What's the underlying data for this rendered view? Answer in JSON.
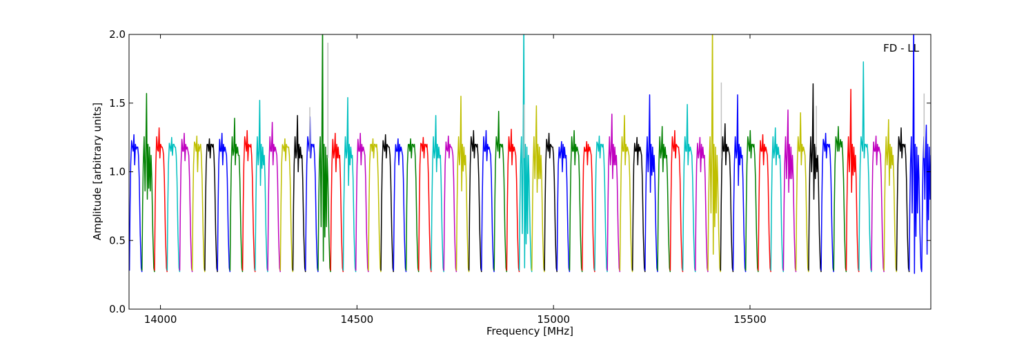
{
  "chart_data": {
    "type": "line",
    "annotation": "FD - LL",
    "xlabel": "Frequency [MHz]",
    "ylabel": "Amplitude [arbitrary units]",
    "xlim": [
      13920,
      15960
    ],
    "ylim": [
      0.0,
      2.0
    ],
    "x_ticks": [
      14000,
      14500,
      15000,
      15500
    ],
    "x_tick_labels": [
      "14000",
      "14500",
      "15000",
      "15500"
    ],
    "y_ticks": [
      0.0,
      0.5,
      1.0,
      1.5,
      2.0
    ],
    "y_tick_labels": [
      "0.0",
      "0.5",
      "1.0",
      "1.5",
      "2.0"
    ],
    "grid": false,
    "legend": "none",
    "color_cycle": [
      "#0000ff",
      "#008000",
      "#ff0000",
      "#00bfbf",
      "#bf00bf",
      "#bfbf00",
      "#000000"
    ],
    "spike_color": "#c0c0c0",
    "channel_width_mhz": 32,
    "channels": [
      {
        "start": 13921,
        "color": "#0000ff",
        "peak": 1.27,
        "dips": [
          1.05,
          1.18
        ]
      },
      {
        "start": 13953,
        "color": "#008000",
        "peak": 1.57,
        "dips": [
          0.8,
          0.86
        ]
      },
      {
        "start": 13985,
        "color": "#ff0000",
        "peak": 1.32,
        "dips": [
          1.1,
          1.16
        ]
      },
      {
        "start": 14017,
        "color": "#00bfbf",
        "peak": 1.25,
        "dips": [
          1.12,
          1.18
        ]
      },
      {
        "start": 14049,
        "color": "#bf00bf",
        "peak": 1.28,
        "dips": [
          1.08,
          1.15
        ]
      },
      {
        "start": 14081,
        "color": "#bfbf00",
        "peak": 1.26,
        "dips": [
          1.0,
          1.2
        ]
      },
      {
        "start": 14113,
        "color": "#000000",
        "peak": 1.24,
        "dips": [
          1.1,
          1.2
        ]
      },
      {
        "start": 14145,
        "color": "#0000ff",
        "peak": 1.28,
        "dips": [
          1.05,
          1.15
        ]
      },
      {
        "start": 14177,
        "color": "#008000",
        "peak": 1.39,
        "dips": [
          1.05,
          1.12
        ]
      },
      {
        "start": 14209,
        "color": "#ff0000",
        "peak": 1.3,
        "dips": [
          1.08,
          1.2
        ]
      },
      {
        "start": 14241,
        "color": "#00bfbf",
        "peak": 1.52,
        "dips": [
          0.9,
          1.05
        ]
      },
      {
        "start": 14273,
        "color": "#bf00bf",
        "peak": 1.36,
        "dips": [
          1.05,
          1.15
        ]
      },
      {
        "start": 14305,
        "color": "#bfbf00",
        "peak": 1.24,
        "dips": [
          1.08,
          1.18
        ]
      },
      {
        "start": 14337,
        "color": "#000000",
        "peak": 1.41,
        "dips": [
          1.0,
          1.1
        ]
      },
      {
        "start": 14369,
        "color": "#0000ff",
        "peak": 1.4,
        "dips": [
          1.1,
          1.2
        ]
      },
      {
        "start": 14401,
        "color": "#008000",
        "peak": 2.1,
        "dips": [
          0.35,
          0.6
        ]
      },
      {
        "start": 14433,
        "color": "#ff0000",
        "peak": 1.28,
        "dips": [
          1.0,
          1.1
        ]
      },
      {
        "start": 14465,
        "color": "#00bfbf",
        "peak": 1.54,
        "dips": [
          0.9,
          1.1
        ]
      },
      {
        "start": 14497,
        "color": "#bf00bf",
        "peak": 1.28,
        "dips": [
          1.05,
          1.15
        ]
      },
      {
        "start": 14529,
        "color": "#bfbf00",
        "peak": 1.24,
        "dips": [
          1.1,
          1.2
        ]
      },
      {
        "start": 14561,
        "color": "#000000",
        "peak": 1.27,
        "dips": [
          1.1,
          1.18
        ]
      },
      {
        "start": 14593,
        "color": "#0000ff",
        "peak": 1.24,
        "dips": [
          1.05,
          1.15
        ]
      },
      {
        "start": 14625,
        "color": "#008000",
        "peak": 1.24,
        "dips": [
          1.1,
          1.2
        ]
      },
      {
        "start": 14657,
        "color": "#ff0000",
        "peak": 1.25,
        "dips": [
          1.1,
          1.2
        ]
      },
      {
        "start": 14689,
        "color": "#00bfbf",
        "peak": 1.41,
        "dips": [
          1.0,
          1.1
        ]
      },
      {
        "start": 14721,
        "color": "#bf00bf",
        "peak": 1.26,
        "dips": [
          1.1,
          1.16
        ]
      },
      {
        "start": 14753,
        "color": "#bfbf00",
        "peak": 1.55,
        "dips": [
          0.86,
          1.05
        ]
      },
      {
        "start": 14785,
        "color": "#000000",
        "peak": 1.3,
        "dips": [
          1.1,
          1.2
        ]
      },
      {
        "start": 14817,
        "color": "#0000ff",
        "peak": 1.3,
        "dips": [
          1.08,
          1.15
        ]
      },
      {
        "start": 14849,
        "color": "#008000",
        "peak": 1.44,
        "dips": [
          1.1,
          1.2
        ]
      },
      {
        "start": 14881,
        "color": "#ff0000",
        "peak": 1.31,
        "dips": [
          1.05,
          1.15
        ]
      },
      {
        "start": 14913,
        "color": "#00bfbf",
        "peak": 2.1,
        "dips": [
          0.3,
          0.55
        ]
      },
      {
        "start": 14945,
        "color": "#bfbf00",
        "peak": 1.48,
        "dips": [
          0.85,
          0.95
        ]
      },
      {
        "start": 14977,
        "color": "#000000",
        "peak": 1.28,
        "dips": [
          1.1,
          1.18
        ]
      },
      {
        "start": 15009,
        "color": "#0000ff",
        "peak": 1.22,
        "dips": [
          1.0,
          1.1
        ]
      },
      {
        "start": 15041,
        "color": "#008000",
        "peak": 1.3,
        "dips": [
          1.05,
          1.15
        ]
      },
      {
        "start": 15073,
        "color": "#ff0000",
        "peak": 1.22,
        "dips": [
          1.05,
          1.15
        ]
      },
      {
        "start": 15105,
        "color": "#00bfbf",
        "peak": 1.26,
        "dips": [
          1.1,
          1.2
        ]
      },
      {
        "start": 15137,
        "color": "#bf00bf",
        "peak": 1.42,
        "dips": [
          0.95,
          1.05
        ]
      },
      {
        "start": 15169,
        "color": "#bfbf00",
        "peak": 1.41,
        "dips": [
          1.05,
          1.15
        ]
      },
      {
        "start": 15201,
        "color": "#000000",
        "peak": 1.25,
        "dips": [
          1.05,
          1.15
        ]
      },
      {
        "start": 15233,
        "color": "#0000ff",
        "peak": 1.56,
        "dips": [
          0.85,
          1.0
        ]
      },
      {
        "start": 15265,
        "color": "#008000",
        "peak": 1.33,
        "dips": [
          1.0,
          1.1
        ]
      },
      {
        "start": 15297,
        "color": "#ff0000",
        "peak": 1.3,
        "dips": [
          1.1,
          1.18
        ]
      },
      {
        "start": 15329,
        "color": "#00bfbf",
        "peak": 1.49,
        "dips": [
          1.05,
          1.15
        ]
      },
      {
        "start": 15361,
        "color": "#bf00bf",
        "peak": 1.25,
        "dips": [
          1.0,
          1.1
        ]
      },
      {
        "start": 15393,
        "color": "#bfbf00",
        "peak": 2.1,
        "dips": [
          0.4,
          0.7
        ]
      },
      {
        "start": 15425,
        "color": "#000000",
        "peak": 1.35,
        "dips": [
          1.05,
          1.15
        ]
      },
      {
        "start": 15457,
        "color": "#0000ff",
        "peak": 1.56,
        "dips": [
          0.9,
          1.1
        ]
      },
      {
        "start": 15489,
        "color": "#008000",
        "peak": 1.3,
        "dips": [
          1.1,
          1.2
        ]
      },
      {
        "start": 15521,
        "color": "#ff0000",
        "peak": 1.27,
        "dips": [
          1.05,
          1.15
        ]
      },
      {
        "start": 15553,
        "color": "#00bfbf",
        "peak": 1.32,
        "dips": [
          1.05,
          1.1
        ]
      },
      {
        "start": 15585,
        "color": "#bf00bf",
        "peak": 1.45,
        "dips": [
          0.85,
          0.95
        ]
      },
      {
        "start": 15617,
        "color": "#bfbf00",
        "peak": 1.43,
        "dips": [
          1.05,
          1.15
        ]
      },
      {
        "start": 15649,
        "color": "#000000",
        "peak": 1.64,
        "dips": [
          0.8,
          1.0
        ]
      },
      {
        "start": 15681,
        "color": "#0000ff",
        "peak": 1.28,
        "dips": [
          1.1,
          1.2
        ]
      },
      {
        "start": 15713,
        "color": "#008000",
        "peak": 1.33,
        "dips": [
          1.15,
          1.22
        ]
      },
      {
        "start": 15745,
        "color": "#ff0000",
        "peak": 1.6,
        "dips": [
          0.85,
          1.0
        ]
      },
      {
        "start": 15777,
        "color": "#00bfbf",
        "peak": 1.8,
        "dips": [
          1.1,
          1.2
        ]
      },
      {
        "start": 15809,
        "color": "#bf00bf",
        "peak": 1.26,
        "dips": [
          1.05,
          1.15
        ]
      },
      {
        "start": 15841,
        "color": "#bfbf00",
        "peak": 1.38,
        "dips": [
          0.9,
          1.05
        ]
      },
      {
        "start": 15873,
        "color": "#000000",
        "peak": 1.32,
        "dips": [
          1.1,
          1.2
        ]
      },
      {
        "start": 15905,
        "color": "#0000ff",
        "peak": 2.1,
        "dips": [
          0.26,
          0.7
        ]
      },
      {
        "start": 15937,
        "color": "#0000ff",
        "peak": 1.34,
        "dips": [
          0.4,
          0.8
        ]
      }
    ],
    "spikes": [
      {
        "x": 14380,
        "y": 1.47
      },
      {
        "x": 14426,
        "y": 1.94
      },
      {
        "x": 14925,
        "y": 1.49
      },
      {
        "x": 15427,
        "y": 1.65
      },
      {
        "x": 15669,
        "y": 1.48
      },
      {
        "x": 15943,
        "y": 1.57
      }
    ]
  }
}
